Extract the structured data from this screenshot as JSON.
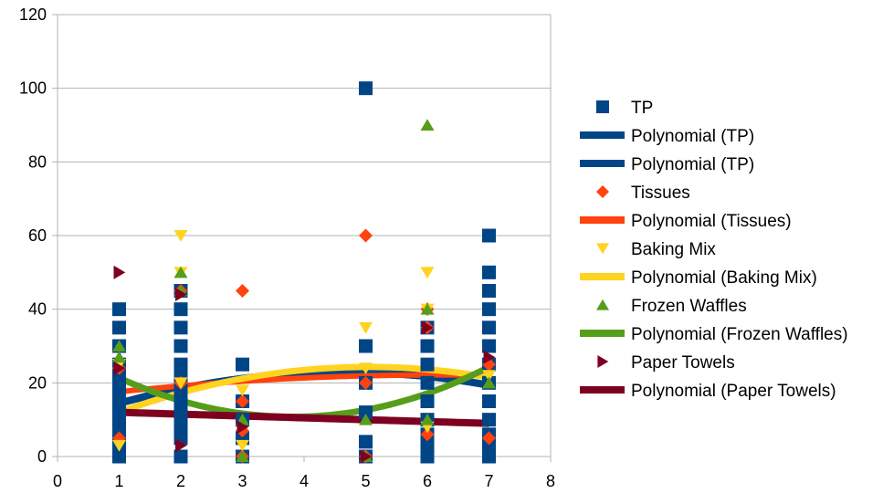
{
  "chart_data": {
    "type": "scatter",
    "title": "",
    "xlabel": "",
    "ylabel": "",
    "xlim": [
      0,
      8
    ],
    "ylim": [
      0,
      120
    ],
    "x_ticks": [
      "0",
      "1",
      "2",
      "3",
      "4",
      "5",
      "6",
      "7",
      "8"
    ],
    "y_ticks": [
      "0",
      "20",
      "40",
      "60",
      "80",
      "100",
      "120"
    ],
    "grid": "horizontal",
    "legend_position": "right",
    "series": [
      {
        "name": "TP",
        "marker": "square",
        "color": "#004586",
        "points": [
          [
            1,
            0
          ],
          [
            1,
            3
          ],
          [
            1,
            5
          ],
          [
            1,
            8
          ],
          [
            1,
            10
          ],
          [
            1,
            12
          ],
          [
            1,
            15
          ],
          [
            1,
            18
          ],
          [
            1,
            20
          ],
          [
            1,
            22
          ],
          [
            1,
            25
          ],
          [
            1,
            30
          ],
          [
            1,
            35
          ],
          [
            1,
            40
          ],
          [
            2,
            0
          ],
          [
            2,
            5
          ],
          [
            2,
            8
          ],
          [
            2,
            10
          ],
          [
            2,
            12
          ],
          [
            2,
            15
          ],
          [
            2,
            18
          ],
          [
            2,
            20
          ],
          [
            2,
            22
          ],
          [
            2,
            25
          ],
          [
            2,
            30
          ],
          [
            2,
            35
          ],
          [
            2,
            40
          ],
          [
            2,
            45
          ],
          [
            3,
            0
          ],
          [
            3,
            5
          ],
          [
            3,
            10
          ],
          [
            3,
            15
          ],
          [
            3,
            25
          ],
          [
            5,
            0
          ],
          [
            5,
            4
          ],
          [
            5,
            12
          ],
          [
            5,
            20
          ],
          [
            5,
            30
          ],
          [
            5,
            100
          ],
          [
            6,
            0
          ],
          [
            6,
            3
          ],
          [
            6,
            6
          ],
          [
            6,
            10
          ],
          [
            6,
            15
          ],
          [
            6,
            20
          ],
          [
            6,
            25
          ],
          [
            6,
            30
          ],
          [
            6,
            35
          ],
          [
            7,
            0
          ],
          [
            7,
            3
          ],
          [
            7,
            6
          ],
          [
            7,
            10
          ],
          [
            7,
            15
          ],
          [
            7,
            20
          ],
          [
            7,
            25
          ],
          [
            7,
            30
          ],
          [
            7,
            35
          ],
          [
            7,
            40
          ],
          [
            7,
            45
          ],
          [
            7,
            50
          ],
          [
            7,
            60
          ]
        ]
      },
      {
        "name": "Tissues",
        "marker": "diamond",
        "color": "#ff420e",
        "points": [
          [
            1,
            24
          ],
          [
            1,
            5
          ],
          [
            2,
            45
          ],
          [
            2,
            20
          ],
          [
            3,
            45
          ],
          [
            3,
            15
          ],
          [
            3,
            7
          ],
          [
            3,
            0
          ],
          [
            5,
            60
          ],
          [
            5,
            20
          ],
          [
            5,
            0
          ],
          [
            6,
            40
          ],
          [
            6,
            35
          ],
          [
            6,
            6
          ],
          [
            7,
            25
          ],
          [
            7,
            5
          ]
        ]
      },
      {
        "name": "Baking Mix",
        "marker": "triangle-down",
        "color": "#ffd320",
        "points": [
          [
            1,
            25
          ],
          [
            1,
            3
          ],
          [
            2,
            60
          ],
          [
            2,
            50
          ],
          [
            2,
            20
          ],
          [
            3,
            18
          ],
          [
            3,
            3
          ],
          [
            5,
            35
          ],
          [
            5,
            24
          ],
          [
            6,
            50
          ],
          [
            6,
            40
          ],
          [
            6,
            8
          ],
          [
            7,
            22
          ]
        ]
      },
      {
        "name": "Frozen Waffles",
        "marker": "triangle-up",
        "color": "#579d1c",
        "points": [
          [
            1,
            30
          ],
          [
            1,
            27
          ],
          [
            2,
            50
          ],
          [
            2,
            45
          ],
          [
            3,
            10
          ],
          [
            3,
            0
          ],
          [
            5,
            10
          ],
          [
            5,
            0
          ],
          [
            6,
            90
          ],
          [
            6,
            40
          ],
          [
            6,
            10
          ],
          [
            7,
            20
          ]
        ]
      },
      {
        "name": "Paper Towels",
        "marker": "triangle-right",
        "color": "#7e0021",
        "points": [
          [
            1,
            50
          ],
          [
            1,
            24
          ],
          [
            2,
            44
          ],
          [
            2,
            3
          ],
          [
            3,
            8
          ],
          [
            5,
            0
          ],
          [
            6,
            35
          ],
          [
            7,
            27
          ]
        ]
      }
    ],
    "trendlines": [
      {
        "name": "Polynomial (TP)",
        "color": "#004586",
        "width": 8,
        "coeffs": [
          9.17,
          5.91,
          -0.636
        ]
      },
      {
        "name": "Polynomial (TP)",
        "color": "#004586",
        "width": 8,
        "coeffs": [
          9.17,
          5.91,
          -0.636
        ]
      },
      {
        "name": "Polynomial (Tissues)",
        "color": "#ff420e",
        "width": 6,
        "coeffs": [
          15.67,
          2.083,
          -0.167
        ]
      },
      {
        "name": "Polynomial (Baking Mix)",
        "color": "#ffd320",
        "width": 7,
        "coeffs": [
          5.17,
          7.58,
          -0.75
        ]
      },
      {
        "name": "Polynomial (Frozen Waffles)",
        "color": "#579d1c",
        "width": 7,
        "coeffs": [
          30.17,
          -10.17,
          1.333
        ]
      },
      {
        "name": "Polynomial (Paper Towels)",
        "color": "#7e0021",
        "width": 8,
        "coeffs": [
          12.5,
          -0.5,
          0
        ]
      }
    ],
    "legend": [
      {
        "label": "TP",
        "kind": "marker",
        "marker": "square",
        "color": "#004586"
      },
      {
        "label": "Polynomial (TP)",
        "kind": "line",
        "color": "#004586"
      },
      {
        "label": "Polynomial (TP)",
        "kind": "line",
        "color": "#004586"
      },
      {
        "label": "Tissues",
        "kind": "marker",
        "marker": "diamond",
        "color": "#ff420e"
      },
      {
        "label": "Polynomial (Tissues)",
        "kind": "line",
        "color": "#ff420e"
      },
      {
        "label": "Baking Mix",
        "kind": "marker",
        "marker": "triangle-down",
        "color": "#ffd320"
      },
      {
        "label": "Polynomial (Baking Mix)",
        "kind": "line",
        "color": "#ffd320"
      },
      {
        "label": "Frozen Waffles",
        "kind": "marker",
        "marker": "triangle-up",
        "color": "#579d1c"
      },
      {
        "label": "Polynomial (Frozen Waffles)",
        "kind": "line",
        "color": "#579d1c"
      },
      {
        "label": "Paper Towels",
        "kind": "marker",
        "marker": "triangle-right",
        "color": "#7e0021"
      },
      {
        "label": "Polynomial (Paper Towels)",
        "kind": "line",
        "color": "#7e0021"
      }
    ]
  }
}
